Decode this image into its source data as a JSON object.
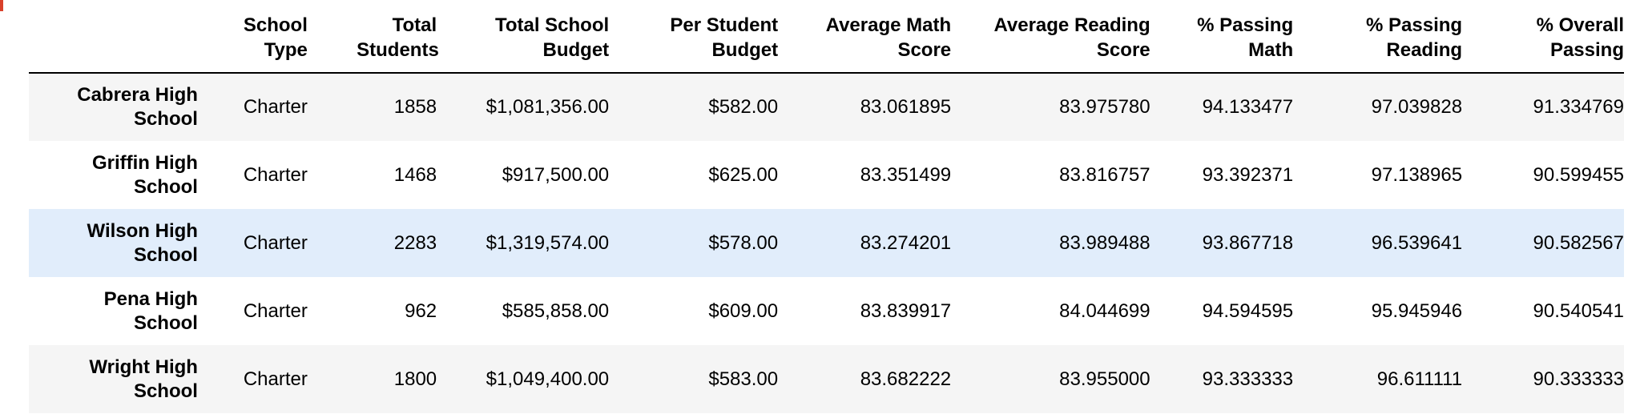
{
  "table": {
    "columns": [
      "",
      "School Type",
      "Total Students",
      "Total School Budget",
      "Per Student Budget",
      "Average Math Score",
      "Average Reading Score",
      "% Passing Math",
      "% Passing Reading",
      "% Overall Passing"
    ],
    "rows": [
      {
        "school": "Cabrera High School",
        "cells": [
          "Charter",
          "1858",
          "$1,081,356.00",
          "$582.00",
          "83.061895",
          "83.975780",
          "94.133477",
          "97.039828",
          "91.334769"
        ]
      },
      {
        "school": "Griffin High School",
        "cells": [
          "Charter",
          "1468",
          "$917,500.00",
          "$625.00",
          "83.351499",
          "83.816757",
          "93.392371",
          "97.138965",
          "90.599455"
        ]
      },
      {
        "school": "Wilson High School",
        "cells": [
          "Charter",
          "2283",
          "$1,319,574.00",
          "$578.00",
          "83.274201",
          "83.989488",
          "93.867718",
          "96.539641",
          "90.582567"
        ]
      },
      {
        "school": "Pena High School",
        "cells": [
          "Charter",
          "962",
          "$585,858.00",
          "$609.00",
          "83.839917",
          "84.044699",
          "94.594595",
          "95.945946",
          "90.540541"
        ]
      },
      {
        "school": "Wright High School",
        "cells": [
          "Charter",
          "1800",
          "$1,049,400.00",
          "$583.00",
          "83.682222",
          "83.955000",
          "93.333333",
          "96.611111",
          "90.333333"
        ]
      }
    ]
  },
  "colors": {
    "row_odd": "#f5f5f5",
    "row_even": "#ffffff",
    "row_hover": "#e1edfb",
    "header_rule": "#000000",
    "corner_mark": "#d9412b"
  }
}
